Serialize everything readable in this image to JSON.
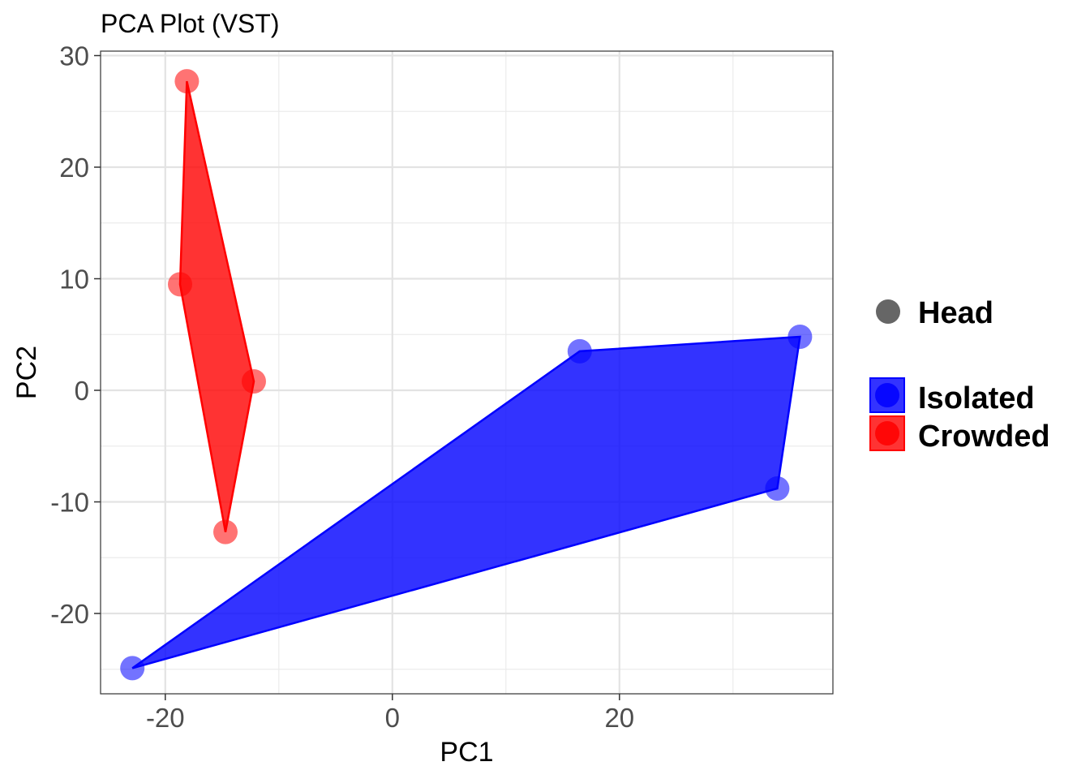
{
  "chart_data": {
    "type": "scatter",
    "title": "PCA Plot (VST)",
    "xlabel": "PC1",
    "ylabel": "PC2",
    "xlim": [
      -25.7,
      38.8
    ],
    "ylim": [
      -27.2,
      30.4
    ],
    "x_ticks": [
      -20,
      0,
      20
    ],
    "x_tick_labels": [
      "-20",
      "0",
      "20"
    ],
    "y_ticks": [
      -20,
      -10,
      0,
      10,
      20,
      30
    ],
    "y_tick_labels": [
      "-20",
      "-10",
      "0",
      "10",
      "20",
      "30"
    ],
    "x_minor_ticks": [
      -10,
      10,
      30
    ],
    "y_minor_ticks": [
      -25,
      -15,
      -5,
      5,
      15,
      25
    ],
    "grid": true,
    "legend_position": "right",
    "shape_legend": {
      "label": "Head",
      "color": "#666666"
    },
    "series": [
      {
        "name": "Isolated",
        "color": "#0000ff",
        "points": [
          [
            -22.9,
            -24.9
          ],
          [
            16.5,
            3.5
          ],
          [
            35.9,
            4.8
          ],
          [
            33.9,
            -8.8
          ]
        ],
        "hull_order": [
          0,
          1,
          2,
          3
        ]
      },
      {
        "name": "Crowded",
        "color": "#ff0000",
        "points": [
          [
            -18.1,
            27.7
          ],
          [
            -18.7,
            9.5
          ],
          [
            -12.2,
            0.8
          ],
          [
            -14.7,
            -12.7
          ]
        ],
        "hull_order": [
          0,
          1,
          3,
          2
        ]
      }
    ]
  }
}
